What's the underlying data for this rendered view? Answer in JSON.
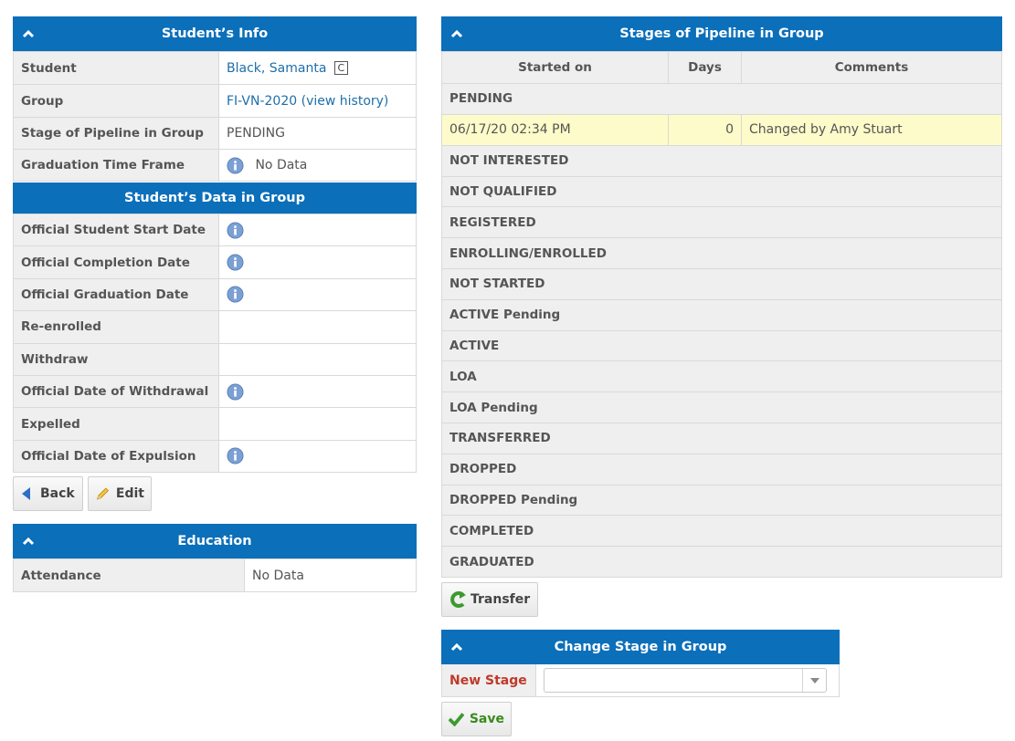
{
  "student_info": {
    "title": "Student’s Info",
    "rows": {
      "student": {
        "label": "Student",
        "value": "Black, Samanta",
        "badge": "C"
      },
      "group": {
        "label": "Group",
        "value": "FI-VN-2020",
        "history_open": "(",
        "history_link": "view history",
        "history_close": ")"
      },
      "stage": {
        "label": "Stage of Pipeline in Group",
        "value": "PENDING"
      },
      "graduation": {
        "label": "Graduation Time Frame",
        "value": "No Data"
      }
    }
  },
  "student_data": {
    "title": "Student’s Data in Group",
    "rows": [
      {
        "label": "Official Student Start Date",
        "info": true
      },
      {
        "label": "Official Completion Date",
        "info": true
      },
      {
        "label": "Official Graduation Date",
        "info": true
      },
      {
        "label": "Re-enrolled",
        "info": false
      },
      {
        "label": "Withdraw",
        "info": false
      },
      {
        "label": "Official Date of Withdrawal",
        "info": true
      },
      {
        "label": "Expelled",
        "info": false
      },
      {
        "label": "Official Date of Expulsion",
        "info": true
      }
    ]
  },
  "buttons": {
    "back": "Back",
    "edit": "Edit",
    "transfer": "Transfer",
    "save": "Save"
  },
  "education": {
    "title": "Education",
    "attendance_label": "Attendance",
    "attendance_value": "No Data"
  },
  "pipeline": {
    "title": "Stages of Pipeline in Group",
    "columns": [
      "Started on",
      "Days",
      "Comments"
    ],
    "current_stage": "PENDING",
    "history": {
      "started_on": "06/17/20 02:34 PM",
      "days": "0",
      "comment": "Changed by Amy Stuart"
    },
    "stages": [
      "NOT INTERESTED",
      "NOT QUALIFIED",
      "REGISTERED",
      "ENROLLING/ENROLLED",
      "NOT STARTED",
      "ACTIVE Pending",
      "ACTIVE",
      "LOA",
      "LOA Pending",
      "TRANSFERRED",
      "DROPPED",
      "DROPPED Pending",
      "COMPLETED",
      "GRADUATED"
    ]
  },
  "change_stage": {
    "title": "Change Stage in Group",
    "label": "New Stage",
    "selected": ""
  },
  "colors": {
    "header": "#0b6fba",
    "link": "#1d6fa9",
    "highlight_row": "#fdfbc9",
    "required_label": "#c0392b",
    "save_text": "#3a8a1e"
  }
}
